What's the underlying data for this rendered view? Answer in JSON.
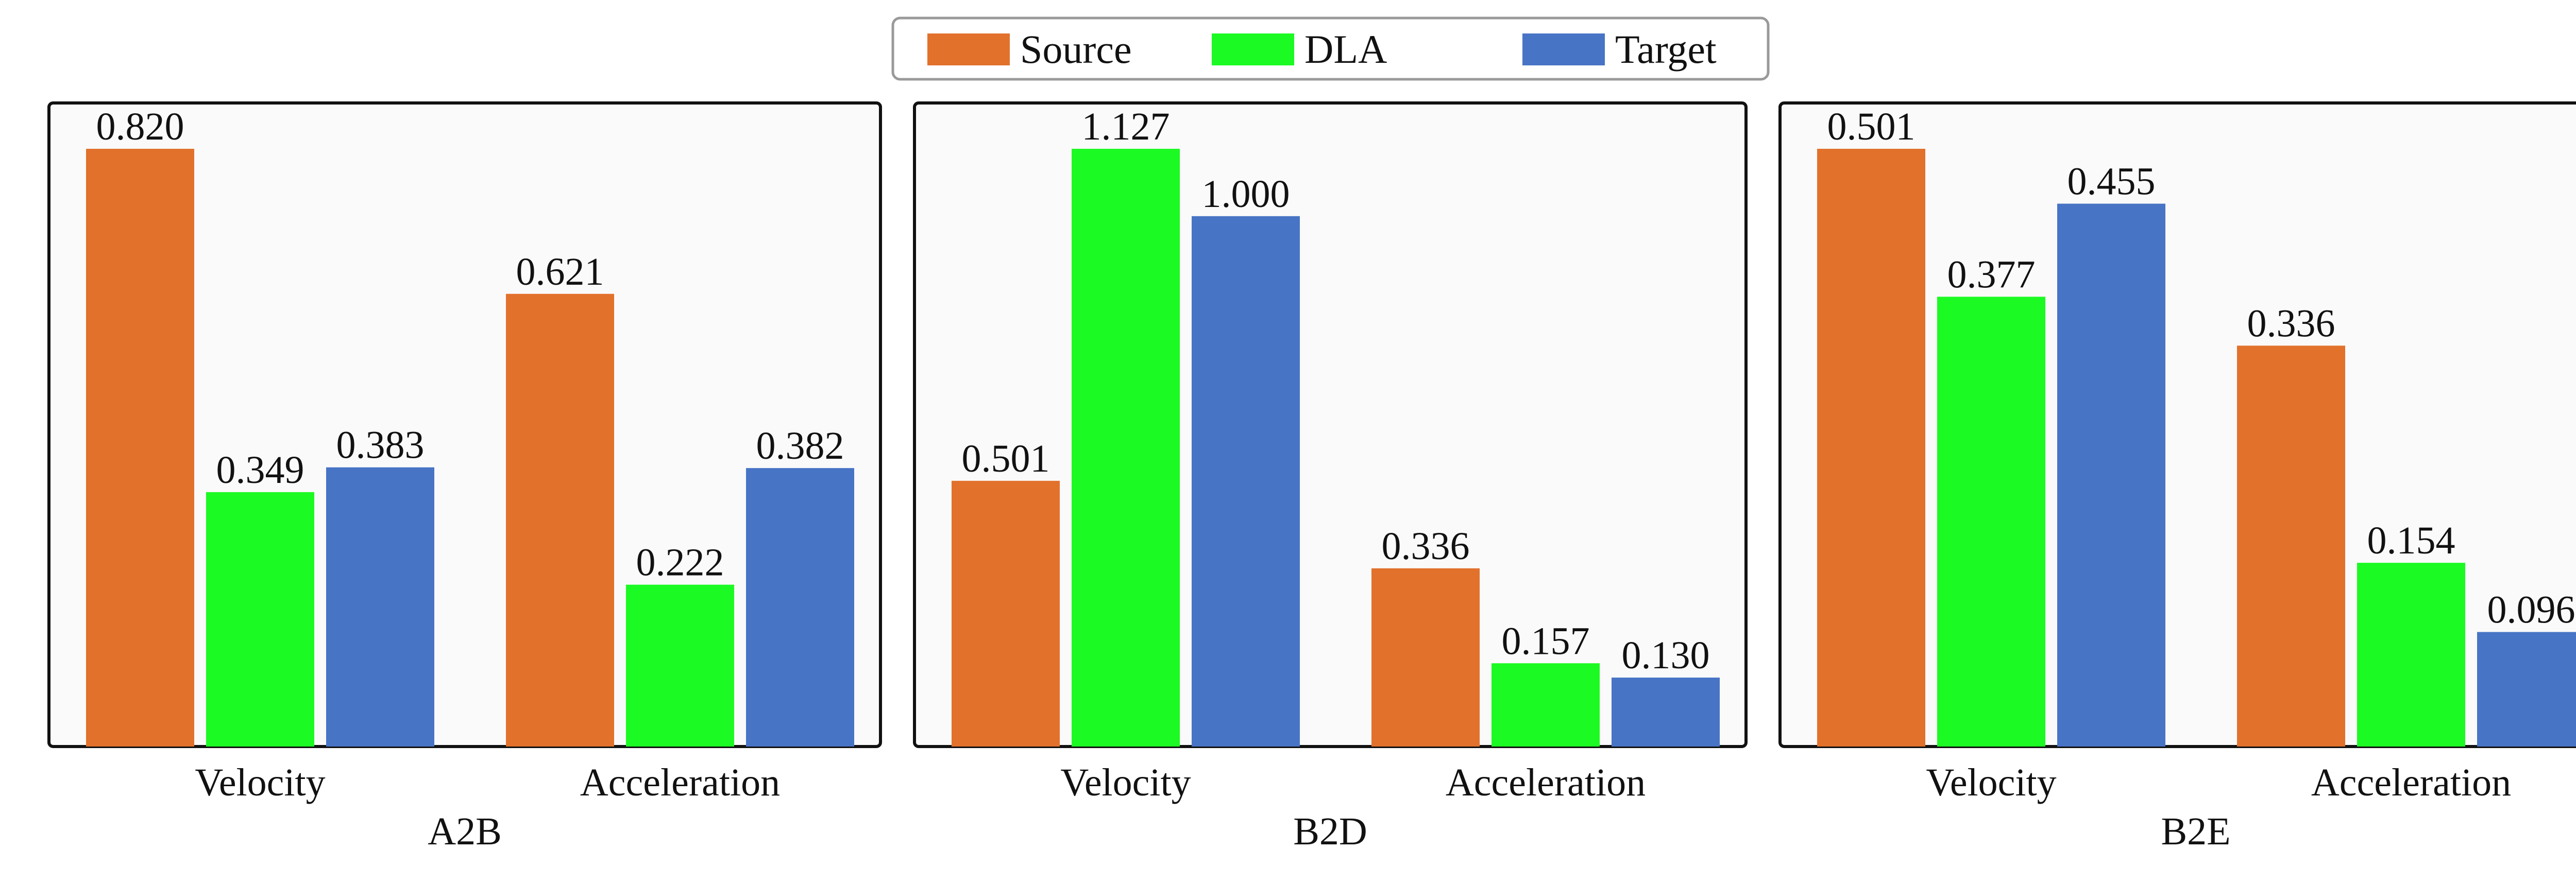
{
  "legend": {
    "placement": "top-center",
    "entries": [
      {
        "label": "Source",
        "color": "#E2712C"
      },
      {
        "label": "DLA",
        "color": "#1BFA23"
      },
      {
        "label": "Target",
        "color": "#4774C5"
      }
    ]
  },
  "colors": {
    "panel_background": "#FAFAFA",
    "panel_border": "#111111"
  },
  "chart_data": [
    {
      "type": "bar",
      "title": "A2B",
      "categories": [
        "Velocity",
        "Acceleration"
      ],
      "series": [
        {
          "name": "Source",
          "values": [
            0.82,
            0.621
          ],
          "labels": [
            "0.820",
            "0.621"
          ]
        },
        {
          "name": "DLA",
          "values": [
            0.349,
            0.222
          ],
          "labels": [
            "0.349",
            "0.222"
          ]
        },
        {
          "name": "Target",
          "values": [
            0.383,
            0.382
          ],
          "labels": [
            "0.383",
            "0.382"
          ]
        }
      ],
      "ylim": [
        0,
        0.82
      ],
      "grid": false
    },
    {
      "type": "bar",
      "title": "B2D",
      "categories": [
        "Velocity",
        "Acceleration"
      ],
      "series": [
        {
          "name": "Source",
          "values": [
            0.501,
            0.336
          ],
          "labels": [
            "0.501",
            "0.336"
          ]
        },
        {
          "name": "DLA",
          "values": [
            1.127,
            0.157
          ],
          "labels": [
            "1.127",
            "0.157"
          ]
        },
        {
          "name": "Target",
          "values": [
            1.0,
            0.13
          ],
          "labels": [
            "1.000",
            "0.130"
          ]
        }
      ],
      "ylim": [
        0,
        1.127
      ],
      "grid": false
    },
    {
      "type": "bar",
      "title": "B2E",
      "categories": [
        "Velocity",
        "Acceleration"
      ],
      "series": [
        {
          "name": "Source",
          "values": [
            0.501,
            0.336
          ],
          "labels": [
            "0.501",
            "0.336"
          ]
        },
        {
          "name": "DLA",
          "values": [
            0.377,
            0.154
          ],
          "labels": [
            "0.377",
            "0.154"
          ]
        },
        {
          "name": "Target",
          "values": [
            0.455,
            0.096
          ],
          "labels": [
            "0.455",
            "0.096"
          ]
        }
      ],
      "ylim": [
        0,
        0.501
      ],
      "grid": false
    }
  ]
}
